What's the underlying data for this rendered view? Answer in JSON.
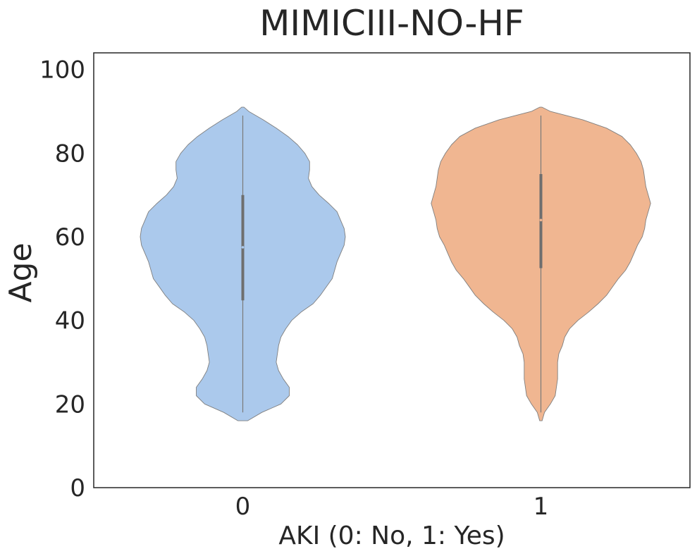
{
  "chart_data": {
    "type": "violin",
    "title": "MIMICIII-NO-HF",
    "xlabel": "AKI (0: No, 1: Yes)",
    "ylabel": "Age",
    "categories": [
      "0",
      "1"
    ],
    "ylim": [
      0,
      104
    ],
    "yticks": [
      0,
      20,
      40,
      60,
      80,
      100
    ],
    "grid": false,
    "colors": [
      "#abc9ec",
      "#f0b691"
    ],
    "outline_color": "#7f7f7f",
    "violins": [
      {
        "category": "0",
        "extent": [
          15.8,
          91.2
        ],
        "whisker": [
          18,
          89
        ],
        "iqr": [
          44.8,
          70
        ],
        "median": 57.5,
        "density": [
          [
            16,
            0.04
          ],
          [
            18,
            0.16
          ],
          [
            20,
            0.32
          ],
          [
            22,
            0.39
          ],
          [
            24,
            0.39
          ],
          [
            26,
            0.34
          ],
          [
            28,
            0.3
          ],
          [
            30,
            0.28
          ],
          [
            32,
            0.29
          ],
          [
            34,
            0.3
          ],
          [
            36,
            0.32
          ],
          [
            38,
            0.36
          ],
          [
            40,
            0.41
          ],
          [
            42,
            0.49
          ],
          [
            44,
            0.59
          ],
          [
            46,
            0.65
          ],
          [
            48,
            0.7
          ],
          [
            50,
            0.75
          ],
          [
            52,
            0.77
          ],
          [
            54,
            0.79
          ],
          [
            56,
            0.82
          ],
          [
            58,
            0.85
          ],
          [
            60,
            0.86
          ],
          [
            62,
            0.85
          ],
          [
            64,
            0.82
          ],
          [
            66,
            0.79
          ],
          [
            68,
            0.72
          ],
          [
            70,
            0.64
          ],
          [
            72,
            0.58
          ],
          [
            74,
            0.55
          ],
          [
            76,
            0.56
          ],
          [
            78,
            0.56
          ],
          [
            80,
            0.52
          ],
          [
            82,
            0.46
          ],
          [
            84,
            0.38
          ],
          [
            86,
            0.28
          ],
          [
            88,
            0.17
          ],
          [
            90,
            0.05
          ],
          [
            91,
            0.01
          ]
        ]
      },
      {
        "category": "1",
        "extent": [
          16,
          91
        ],
        "whisker": [
          18,
          89
        ],
        "iqr": [
          52.5,
          75
        ],
        "median": 64,
        "density": [
          [
            16,
            0.01
          ],
          [
            18,
            0.03
          ],
          [
            20,
            0.08
          ],
          [
            22,
            0.12
          ],
          [
            24,
            0.13
          ],
          [
            26,
            0.14
          ],
          [
            28,
            0.14
          ],
          [
            30,
            0.14
          ],
          [
            32,
            0.15
          ],
          [
            34,
            0.18
          ],
          [
            36,
            0.2
          ],
          [
            38,
            0.24
          ],
          [
            40,
            0.31
          ],
          [
            42,
            0.4
          ],
          [
            44,
            0.48
          ],
          [
            46,
            0.55
          ],
          [
            48,
            0.6
          ],
          [
            50,
            0.65
          ],
          [
            52,
            0.71
          ],
          [
            54,
            0.75
          ],
          [
            56,
            0.78
          ],
          [
            58,
            0.81
          ],
          [
            60,
            0.85
          ],
          [
            62,
            0.87
          ],
          [
            64,
            0.88
          ],
          [
            66,
            0.9
          ],
          [
            68,
            0.92
          ],
          [
            70,
            0.9
          ],
          [
            72,
            0.88
          ],
          [
            74,
            0.87
          ],
          [
            76,
            0.86
          ],
          [
            78,
            0.84
          ],
          [
            80,
            0.8
          ],
          [
            82,
            0.75
          ],
          [
            84,
            0.68
          ],
          [
            86,
            0.55
          ],
          [
            88,
            0.35
          ],
          [
            90,
            0.08
          ],
          [
            91,
            0.01
          ]
        ]
      }
    ]
  }
}
